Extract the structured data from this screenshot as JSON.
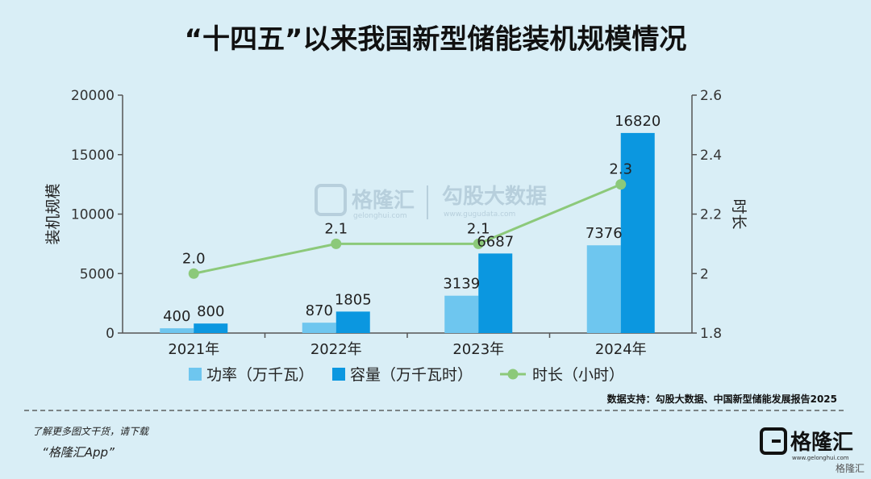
{
  "page": {
    "title": "“十四五”以来我国新型储能装机规模情况",
    "source": "数据支持：勾股大数据、中国新型储能发展报告2025",
    "promo_line1": "了解更多图文干货，请下载",
    "promo_line2": "“格隆汇App”",
    "logo_name": "格隆汇",
    "logo_sub": "www.gelonghui.com",
    "corner_mark": "格隆汇",
    "watermark_left": "格隆汇",
    "watermark_left_sub": "gelonghui.com",
    "watermark_right": "勾股大数据",
    "watermark_right_sub": "www.gugudata.com"
  },
  "chart_data": {
    "type": "bar",
    "categories": [
      "2021年",
      "2022年",
      "2023年",
      "2024年"
    ],
    "series": [
      {
        "name": "功率（万千瓦）",
        "type": "bar",
        "axis": "left",
        "values": [
          400,
          870,
          3139,
          7376
        ],
        "color": "#6ec6ef"
      },
      {
        "name": "容量（万千瓦时）",
        "type": "bar",
        "axis": "left",
        "values": [
          800,
          1805,
          6687,
          16820
        ],
        "color": "#0b97e0"
      },
      {
        "name": "时长（小时）",
        "type": "line",
        "axis": "right",
        "values": [
          2.0,
          2.1,
          2.1,
          2.3
        ],
        "labels": [
          "2.0",
          "2.1",
          "2.1",
          "2.3"
        ],
        "color": "#8cc97a"
      }
    ],
    "ylabel": "装机规模",
    "y2label": "时长",
    "ylim": [
      0,
      20000
    ],
    "y2lim": [
      1.8,
      2.6
    ],
    "yticks": [
      "0",
      "5000",
      "10000",
      "15000",
      "20000"
    ],
    "y2ticks": [
      "1.8",
      "2",
      "2.2",
      "2.4",
      "2.6"
    ],
    "legend_position": "bottom",
    "grid": false
  }
}
